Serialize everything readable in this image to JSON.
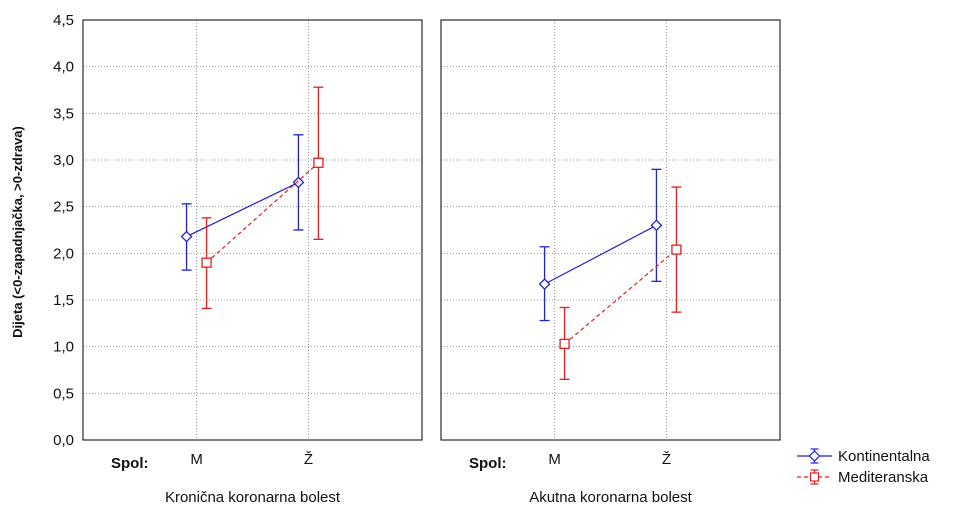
{
  "chart_data": {
    "type": "line",
    "ylabel": "Dijeta (<0-zapadnjačka, >0-zdrava)",
    "ylim": [
      0,
      4.5
    ],
    "yticks": [
      "0,0",
      "0,5",
      "1,0",
      "1,5",
      "2,0",
      "2,5",
      "3,0",
      "3,5",
      "4,0",
      "4,5"
    ],
    "grid": true,
    "x_prefix_label": "Spol:",
    "categories": [
      "M",
      "Ž"
    ],
    "legend": {
      "placement": "bottom-right",
      "entries": [
        "Kontinentalna",
        "Mediteranska"
      ]
    },
    "panels": [
      {
        "title": "Kronična koronarna bolest",
        "series": [
          {
            "name": "Kontinentalna",
            "color": "#2222cc",
            "marker": "diamond",
            "line": "solid",
            "values": [
              2.18,
              2.76
            ],
            "lower": [
              1.82,
              2.25
            ],
            "upper": [
              2.53,
              3.27
            ]
          },
          {
            "name": "Mediteranska",
            "color": "#e02020",
            "marker": "square",
            "line": "dashed",
            "values": [
              1.9,
              2.97
            ],
            "lower": [
              1.41,
              2.15
            ],
            "upper": [
              2.38,
              3.78
            ]
          }
        ]
      },
      {
        "title": "Akutna koronarna bolest",
        "series": [
          {
            "name": "Kontinentalna",
            "color": "#2222cc",
            "marker": "diamond",
            "line": "solid",
            "values": [
              1.67,
              2.3
            ],
            "lower": [
              1.28,
              1.7
            ],
            "upper": [
              2.07,
              2.9
            ]
          },
          {
            "name": "Mediteranska",
            "color": "#e02020",
            "marker": "square",
            "line": "dashed",
            "values": [
              1.03,
              2.04
            ],
            "lower": [
              0.65,
              1.37
            ],
            "upper": [
              1.42,
              2.71
            ]
          }
        ]
      }
    ]
  }
}
